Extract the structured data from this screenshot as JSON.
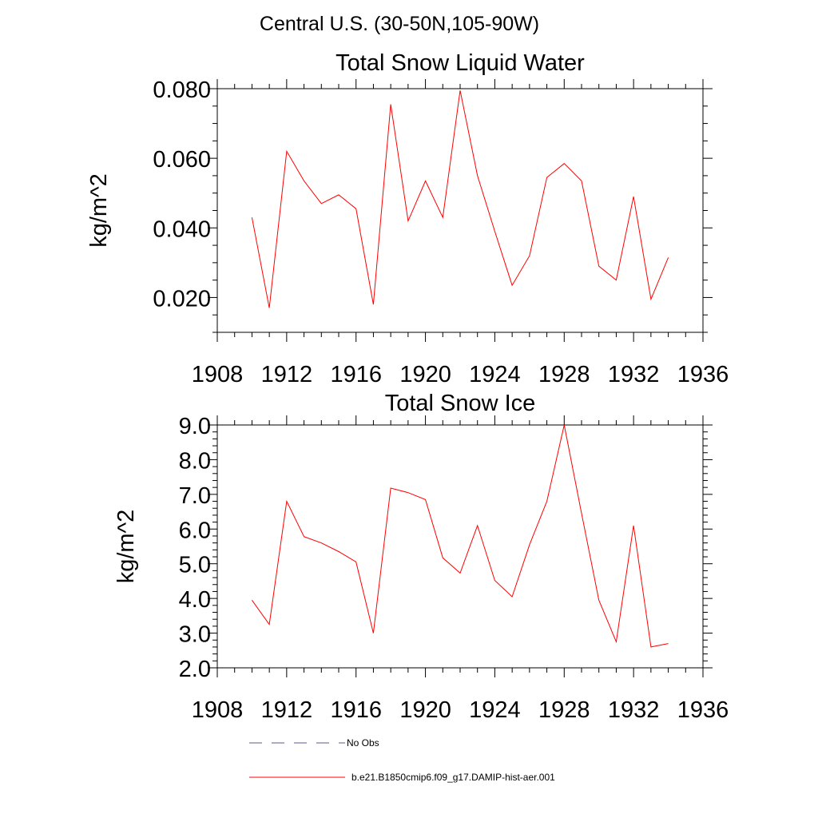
{
  "figure": {
    "title": "Central U.S. (30-50N,105-90W)"
  },
  "chart_data": [
    {
      "type": "line",
      "title": "Total Snow Liquid Water",
      "xlabel": "",
      "ylabel": "kg/m^2",
      "xlim": [
        1908,
        1936
      ],
      "ylim": [
        0.01,
        0.08
      ],
      "xticks": [
        1908,
        1912,
        1916,
        1920,
        1924,
        1928,
        1932,
        1936
      ],
      "xtick_labels": [
        "1908",
        "1912",
        "1916",
        "1920",
        "1924",
        "1928",
        "1932",
        "1936"
      ],
      "yticks": [
        0.02,
        0.04,
        0.06,
        0.08
      ],
      "ytick_labels": [
        "0.020",
        "0.040",
        "0.060",
        "0.080"
      ],
      "series": [
        {
          "name": "b.e21.B1850cmip6.f09_g17.DAMIP-hist-aer.001",
          "color": "#ff0000",
          "x": [
            1910,
            1911,
            1912,
            1913,
            1914,
            1915,
            1916,
            1917,
            1918,
            1919,
            1920,
            1921,
            1922,
            1923,
            1924,
            1925,
            1926,
            1927,
            1928,
            1929,
            1930,
            1931,
            1932,
            1933,
            1934
          ],
          "y": [
            0.043,
            0.017,
            0.062,
            0.0535,
            0.047,
            0.0495,
            0.0455,
            0.018,
            0.0755,
            0.042,
            0.0535,
            0.043,
            0.0795,
            0.055,
            0.039,
            0.0235,
            0.032,
            0.0545,
            0.0585,
            0.0535,
            0.029,
            0.025,
            0.049,
            0.0195,
            0.0315
          ]
        }
      ]
    },
    {
      "type": "line",
      "title": "Total Snow Ice",
      "xlabel": "",
      "ylabel": "kg/m^2",
      "xlim": [
        1908,
        1936
      ],
      "ylim": [
        2.0,
        9.0
      ],
      "xticks": [
        1908,
        1912,
        1916,
        1920,
        1924,
        1928,
        1932,
        1936
      ],
      "xtick_labels": [
        "1908",
        "1912",
        "1916",
        "1920",
        "1924",
        "1928",
        "1932",
        "1936"
      ],
      "yticks": [
        2,
        3,
        4,
        5,
        6,
        7,
        8,
        9
      ],
      "ytick_labels": [
        "2.0",
        "3.0",
        "4.0",
        "5.0",
        "6.0",
        "7.0",
        "8.0",
        "9.0"
      ],
      "series": [
        {
          "name": "b.e21.B1850cmip6.f09_g17.DAMIP-hist-aer.001",
          "color": "#ff0000",
          "x": [
            1910,
            1911,
            1912,
            1913,
            1914,
            1915,
            1916,
            1917,
            1918,
            1919,
            1920,
            1921,
            1922,
            1923,
            1924,
            1925,
            1926,
            1927,
            1928,
            1929,
            1930,
            1931,
            1932,
            1933,
            1934
          ],
          "y": [
            3.95,
            3.25,
            6.8,
            5.78,
            5.6,
            5.35,
            5.05,
            3.0,
            7.18,
            7.05,
            6.85,
            5.17,
            4.73,
            6.1,
            4.52,
            4.05,
            5.55,
            6.8,
            9.0,
            6.45,
            3.95,
            2.75,
            6.1,
            2.6,
            2.7
          ]
        }
      ]
    }
  ],
  "legend": {
    "items": [
      {
        "label": "No Obs",
        "style": "dashed",
        "color": "#5a5a8a"
      },
      {
        "label": "b.e21.B1850cmip6.f09_g17.DAMIP-hist-aer.001",
        "style": "solid",
        "color": "#ff0000"
      }
    ]
  }
}
